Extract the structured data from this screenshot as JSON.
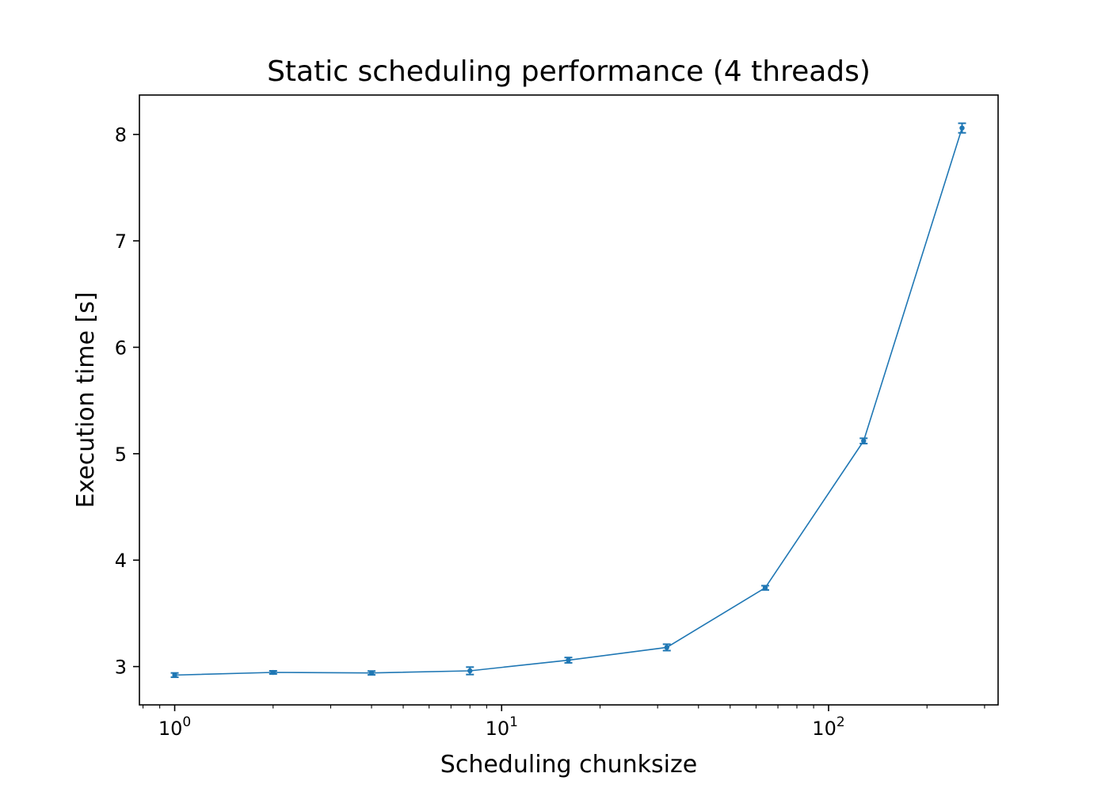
{
  "chart_data": {
    "type": "line",
    "title": "Static scheduling performance (4 threads)",
    "xlabel": "Scheduling chunksize",
    "ylabel": "Execution time [s]",
    "xscale": "log",
    "xlim": [
      0.78,
      330
    ],
    "ylim": [
      2.64,
      8.37
    ],
    "x_ticks": [
      {
        "value": 1,
        "base": "10",
        "exp": "0"
      },
      {
        "value": 10,
        "base": "10",
        "exp": "1"
      },
      {
        "value": 100,
        "base": "10",
        "exp": "2"
      }
    ],
    "y_ticks": [
      3,
      4,
      5,
      6,
      7,
      8
    ],
    "grid": false,
    "legend": "none",
    "color": "#1f77b4",
    "series": [
      {
        "x": [
          1,
          2,
          4,
          8,
          16,
          32,
          64,
          128,
          256
        ],
        "y": [
          2.92,
          2.945,
          2.94,
          2.96,
          3.06,
          3.18,
          3.74,
          5.12,
          8.06
        ],
        "yerr": [
          0.02,
          0.015,
          0.018,
          0.035,
          0.025,
          0.03,
          0.02,
          0.025,
          0.045
        ]
      }
    ]
  }
}
